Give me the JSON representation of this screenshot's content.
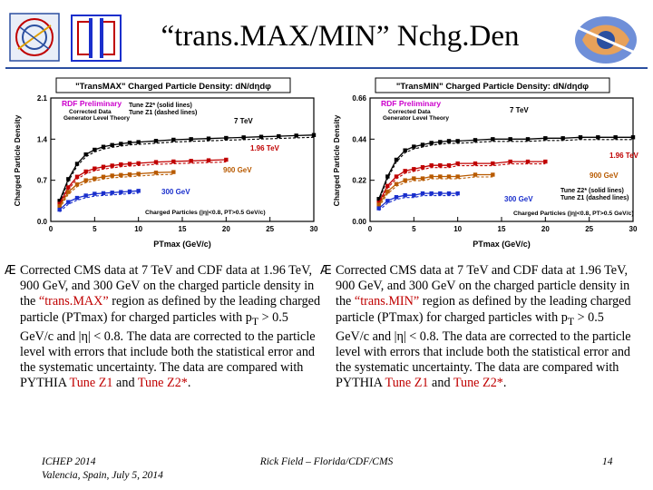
{
  "slide": {
    "title": "“trans.MAX/MIN” Nchg.Den",
    "logos": {
      "left1": "cms-logo-icon",
      "left2": "cdf-logo-icon",
      "right": "cdf-swirl-logo-icon"
    },
    "footer": {
      "left_line1": "ICHEP 2014",
      "left_line2": "Valencia, Spain, July 5, 2014",
      "center": "Rick Field – Florida/CDF/CMS",
      "page": "14"
    }
  },
  "captions": {
    "left": {
      "bullet": "Æ",
      "p1": "Corrected CMS data at 7 TeV and CDF data at 1.96 TeV, 900 GeV, and 300 GeV on the charged particle density in the ",
      "region_name": "“trans.MAX”",
      "p2": " region as defined by the leading charged particle (PTmax) for charged particles with p",
      "sub": "T",
      "p3": " > 0.5 GeV/c and |η| < 0.8. The data are corrected to the particle level with errors that include both the statistical error and the systematic uncertainty. The data are compared with PYTHIA ",
      "tune1": "Tune Z1",
      "and": " and ",
      "tune2": "Tune Z2*",
      "end": "."
    },
    "right": {
      "bullet": "Æ",
      "p1": "Corrected CMS data at 7 TeV and CDF data at 1.96 TeV, 900 GeV, and 300 GeV on the charged particle density in the ",
      "region_name": "“trans.MIN”",
      "p2": " region as defined by the leading charged particle (PTmax) for charged particles with p",
      "sub": "T",
      "p3": " > 0.5 GeV/c and |η| < 0.8. The data are corrected to the particle level with errors that include both the statistical error and the systematic uncertainty. The data are compared with PYTHIA ",
      "tune1": "Tune Z1",
      "and": " and ",
      "tune2": "Tune Z2*",
      "end": "."
    }
  },
  "colors": {
    "s7": "#000000",
    "s196": "#c00000",
    "s900": "#b85a00",
    "s300": "#1a2fcc",
    "banner": "#2b4fa0"
  },
  "chart_data": [
    {
      "type": "line",
      "title": "\"TransMAX\" Charged Particle Density: dN/dηdφ",
      "xlabel": "PTmax (GeV/c)",
      "ylabel": "Charged Particle Density",
      "xlim": [
        0,
        30
      ],
      "ylim": [
        0,
        2.1
      ],
      "xticks": [
        "0",
        "5",
        "10",
        "15",
        "20",
        "25",
        "30"
      ],
      "yticks": [
        "0.0",
        "0.7",
        "1.4",
        "2.1"
      ],
      "annotations": {
        "prelim": "RDF Preliminary",
        "sub1": "Corrected Data",
        "sub2": "Generator Level Theory",
        "tunes1": "Tune Z2* (solid lines)",
        "tunes2": "Tune Z1 (dashed lines)",
        "cuts": "Charged Particles (|η|<0.8, PT>0.5 GeV/c)"
      },
      "series": [
        {
          "name": "7 TeV",
          "x": [
            1,
            2,
            3,
            4,
            5,
            6,
            7,
            8,
            9,
            10,
            12,
            14,
            16,
            18,
            20,
            22,
            24,
            26,
            28,
            30
          ],
          "values": [
            0.35,
            0.72,
            0.98,
            1.14,
            1.22,
            1.27,
            1.3,
            1.32,
            1.34,
            1.35,
            1.37,
            1.39,
            1.4,
            1.41,
            1.42,
            1.43,
            1.44,
            1.45,
            1.46,
            1.47
          ]
        },
        {
          "name": "1.96 TeV",
          "x": [
            1,
            2,
            3,
            4,
            5,
            6,
            7,
            8,
            9,
            10,
            12,
            14,
            16,
            18,
            20
          ],
          "values": [
            0.3,
            0.58,
            0.76,
            0.85,
            0.9,
            0.93,
            0.95,
            0.97,
            0.98,
            0.99,
            1.01,
            1.02,
            1.03,
            1.04,
            1.05
          ]
        },
        {
          "name": "900 GeV",
          "x": [
            1,
            2,
            3,
            4,
            5,
            6,
            7,
            8,
            9,
            10,
            12,
            14
          ],
          "values": [
            0.26,
            0.5,
            0.63,
            0.7,
            0.73,
            0.76,
            0.78,
            0.79,
            0.8,
            0.81,
            0.83,
            0.84
          ]
        },
        {
          "name": "300 GeV",
          "x": [
            1,
            2,
            3,
            4,
            5,
            6,
            7,
            8,
            9,
            10
          ],
          "values": [
            0.2,
            0.33,
            0.4,
            0.44,
            0.47,
            0.48,
            0.49,
            0.5,
            0.51,
            0.52
          ]
        }
      ]
    },
    {
      "type": "line",
      "title": "\"TransMIN\" Charged Particle Density: dN/dηdφ",
      "xlabel": "PTmax (GeV/c)",
      "ylabel": "Charged Particle Density",
      "xlim": [
        0,
        30
      ],
      "ylim": [
        0,
        0.66
      ],
      "xticks": [
        "0",
        "5",
        "10",
        "15",
        "20",
        "25",
        "30"
      ],
      "yticks": [
        "0.00",
        "0.22",
        "0.44",
        "0.66"
      ],
      "annotations": {
        "prelim": "RDF Preliminary",
        "sub1": "Corrected Data",
        "sub2": "Generator Level Theory",
        "tunes1": "Tune Z2* (solid lines)",
        "tunes2": "Tune Z1 (dashed lines)",
        "cuts": "Charged Particles (|η|<0.8, PT>0.5 GeV/c)"
      },
      "series": [
        {
          "name": "7 TeV",
          "x": [
            1,
            2,
            3,
            4,
            5,
            6,
            7,
            8,
            9,
            10,
            12,
            14,
            16,
            18,
            20,
            22,
            24,
            26,
            28,
            30
          ],
          "values": [
            0.12,
            0.24,
            0.33,
            0.38,
            0.4,
            0.41,
            0.42,
            0.425,
            0.43,
            0.43,
            0.435,
            0.44,
            0.44,
            0.44,
            0.445,
            0.445,
            0.45,
            0.45,
            0.45,
            0.45
          ]
        },
        {
          "name": "1.96 TeV",
          "x": [
            1,
            2,
            3,
            4,
            5,
            6,
            7,
            8,
            9,
            10,
            12,
            14,
            16,
            18,
            20
          ],
          "values": [
            0.1,
            0.19,
            0.24,
            0.27,
            0.28,
            0.29,
            0.3,
            0.3,
            0.3,
            0.31,
            0.31,
            0.31,
            0.32,
            0.32,
            0.32
          ]
        },
        {
          "name": "900 GeV",
          "x": [
            1,
            2,
            3,
            4,
            5,
            6,
            7,
            8,
            9,
            10,
            12,
            14
          ],
          "values": [
            0.09,
            0.16,
            0.2,
            0.22,
            0.23,
            0.23,
            0.24,
            0.24,
            0.24,
            0.24,
            0.25,
            0.25
          ]
        },
        {
          "name": "300 GeV",
          "x": [
            1,
            2,
            3,
            4,
            5,
            6,
            7,
            8,
            9,
            10
          ],
          "values": [
            0.07,
            0.11,
            0.13,
            0.14,
            0.14,
            0.15,
            0.15,
            0.15,
            0.15,
            0.15
          ]
        }
      ]
    }
  ]
}
